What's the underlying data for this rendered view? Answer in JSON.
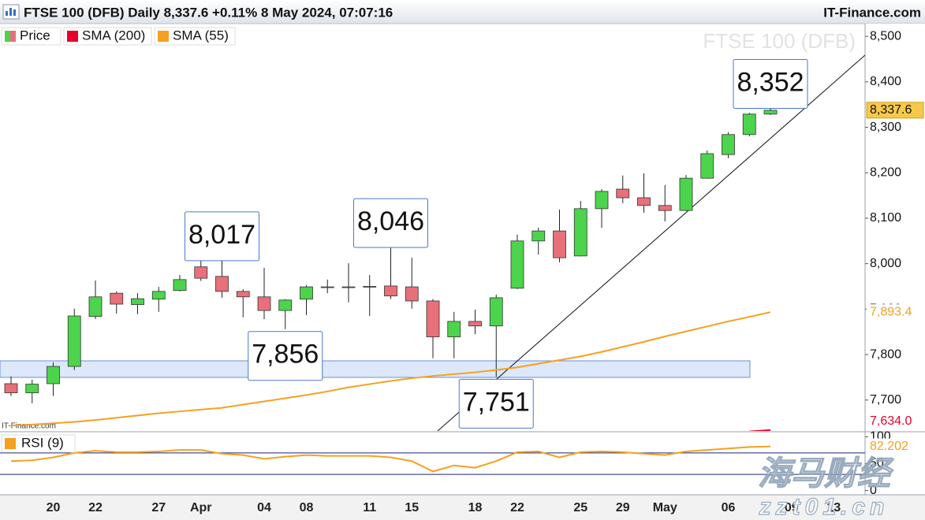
{
  "chart_data": [
    {
      "type": "candlestick",
      "title": "FTSE 100 (DFB) Daily 8,337.6 +0.11% 8 May 2024, 07:07:16",
      "source": "IT-Finance.com",
      "watermark": "FTSE 100 (DFB)",
      "credit": "IT-Finance.com",
      "overlay": [
        "海马财经",
        "zzt01.cn"
      ],
      "legend": "top-left",
      "grid": false,
      "categories": [
        null,
        null,
        "20",
        null,
        "22",
        null,
        null,
        "27",
        null,
        "Apr",
        null,
        null,
        "04",
        null,
        "08",
        null,
        null,
        "11",
        null,
        "15",
        null,
        null,
        "18",
        null,
        "22",
        null,
        null,
        "25",
        null,
        "29",
        null,
        "May",
        null,
        null,
        "06",
        null,
        null,
        "09",
        null,
        "13"
      ],
      "ylim": [
        7632,
        8528
      ],
      "yticks": [
        {
          "value": 7700,
          "label": "7,700"
        },
        {
          "value": 7800,
          "label": "7,800"
        },
        {
          "value": 7900,
          "label": "7,900"
        },
        {
          "value": 8000,
          "label": "8,000"
        },
        {
          "value": 8100,
          "label": "8,100"
        },
        {
          "value": 8200,
          "label": "8,200"
        },
        {
          "value": 8300,
          "label": "8,300"
        },
        {
          "value": 8400,
          "label": "8,400"
        },
        {
          "value": 8500,
          "label": "8,500"
        }
      ],
      "series": [
        {
          "name": "Price",
          "type": "candlestick",
          "up_color": "#4cd44c",
          "down_color": "#e8707a",
          "open": [
            7736,
            7716,
            7736,
            7774,
            7884,
            7935,
            7910,
            7922,
            7941,
            7993,
            7972,
            7939,
            7927,
            7897,
            7922,
            7948,
            7949,
            7949,
            7951,
            7949,
            7918,
            7839,
            7873,
            7863,
            7946,
            8050,
            8072,
            8017,
            8121,
            8164,
            8145,
            8128,
            8117,
            8188,
            8240,
            8284,
            8329,
            null,
            null,
            null
          ],
          "high": [
            7752,
            7745,
            7783,
            7901,
            7963,
            7939,
            7935,
            7949,
            7975,
            8008,
            8017,
            7944,
            7991,
            7922,
            7953,
            7965,
            8001,
            7975,
            8046,
            8013,
            7922,
            7894,
            7899,
            7932,
            8064,
            8079,
            8119,
            8138,
            8164,
            8194,
            8199,
            8173,
            8195,
            8249,
            8289,
            8332,
            8352,
            null,
            null,
            null
          ],
          "low": [
            7709,
            7693,
            7709,
            7766,
            7878,
            7890,
            7889,
            7894,
            7939,
            7962,
            7925,
            7882,
            7878,
            7856,
            7887,
            7935,
            7915,
            7885,
            7922,
            7901,
            7792,
            7792,
            7845,
            7751,
            7944,
            8020,
            8003,
            8016,
            8079,
            8133,
            8112,
            8093,
            8116,
            8187,
            8232,
            8280,
            8327,
            null,
            null,
            null
          ],
          "close": [
            7716,
            7735,
            7774,
            7885,
            7927,
            7911,
            7923,
            7939,
            7965,
            7968,
            7939,
            7927,
            7897,
            7920,
            7949,
            7949,
            7949,
            7950,
            7929,
            7918,
            7839,
            7873,
            7863,
            7925,
            8050,
            8072,
            8013,
            8121,
            8159,
            8145,
            8128,
            8117,
            8188,
            8242,
            8284,
            8329,
            8337.6,
            null,
            null,
            null
          ],
          "high_labels": [
            null,
            null,
            null,
            null,
            null,
            null,
            null,
            null,
            null,
            null,
            "8,017",
            null,
            null,
            null,
            null,
            null,
            null,
            null,
            "8,046",
            null,
            null,
            null,
            null,
            null,
            null,
            null,
            null,
            null,
            null,
            null,
            null,
            null,
            null,
            null,
            null,
            null,
            "8,352",
            null,
            null,
            null
          ],
          "low_labels": [
            null,
            null,
            null,
            null,
            null,
            null,
            null,
            null,
            null,
            null,
            null,
            null,
            null,
            "7,856",
            null,
            null,
            null,
            null,
            null,
            null,
            null,
            null,
            null,
            "7,751",
            null,
            null,
            null,
            null,
            null,
            null,
            null,
            null,
            null,
            null,
            null,
            null,
            null,
            null,
            null,
            null
          ],
          "close_labels": [
            null,
            null,
            null,
            null,
            null,
            null,
            null,
            null,
            null,
            null,
            null,
            null,
            null,
            null,
            null,
            null,
            null,
            null,
            null,
            null,
            null,
            null,
            null,
            null,
            null,
            null,
            null,
            null,
            null,
            null,
            null,
            null,
            null,
            null,
            null,
            null,
            "8,337.6",
            null,
            null,
            null
          ]
        },
        {
          "name": "SMA (200)",
          "type": "line",
          "color": "#e8002a",
          "values": [
            null,
            null,
            null,
            null,
            null,
            null,
            null,
            null,
            null,
            null,
            null,
            null,
            null,
            null,
            null,
            null,
            null,
            null,
            null,
            null,
            null,
            null,
            null,
            null,
            null,
            null,
            null,
            null,
            null,
            null,
            null,
            null,
            null,
            null,
            null,
            7631,
            7634.0,
            null,
            null,
            null
          ],
          "value_labels": [
            null,
            null,
            null,
            null,
            null,
            null,
            null,
            null,
            null,
            null,
            null,
            null,
            null,
            null,
            null,
            null,
            null,
            null,
            null,
            null,
            null,
            null,
            null,
            null,
            null,
            null,
            null,
            null,
            null,
            null,
            null,
            null,
            null,
            null,
            null,
            null,
            "7,634.0",
            null,
            null,
            null
          ]
        },
        {
          "name": "SMA (55)",
          "type": "line",
          "color": "#f5a020",
          "values": [
            7644,
            7646,
            7649,
            7652,
            7656,
            7661,
            7666,
            7671,
            7675,
            7679,
            7683,
            7690,
            7697,
            7704,
            7711,
            7719,
            7728,
            7735,
            7742,
            7748,
            7753,
            7757,
            7761,
            7766,
            7772,
            7780,
            7788,
            7796,
            7806,
            7817,
            7828,
            7840,
            7851,
            7862,
            7873,
            7883,
            7893.4,
            null,
            null,
            null
          ],
          "value_labels": [
            null,
            null,
            null,
            null,
            null,
            null,
            null,
            null,
            null,
            null,
            null,
            null,
            null,
            null,
            null,
            null,
            null,
            null,
            null,
            null,
            null,
            null,
            null,
            null,
            null,
            null,
            null,
            null,
            null,
            null,
            null,
            null,
            null,
            null,
            null,
            null,
            "7,893.4",
            null,
            null,
            null
          ]
        }
      ]
    },
    {
      "type": "line",
      "ylim": [
        -8,
        108
      ],
      "yticks": [
        0,
        50,
        100
      ],
      "levels": [
        70,
        30
      ],
      "level_color": "#1a237e",
      "series": [
        {
          "name": "RSI (9)",
          "color": "#f5a020",
          "values": [
            54.8,
            56.2,
            61.7,
            70,
            74.1,
            71.4,
            71.4,
            72.8,
            75.5,
            75.5,
            68.6,
            65.9,
            59,
            63.1,
            65.9,
            64.5,
            64.5,
            64.5,
            61.7,
            54.8,
            35.5,
            46.6,
            42.4,
            54.8,
            71.4,
            72.8,
            61.7,
            71.4,
            72.8,
            71.4,
            68.6,
            65.9,
            72.8,
            75.5,
            78.3,
            81,
            82.202,
            null,
            null,
            null
          ],
          "value_labels": [
            null,
            null,
            null,
            null,
            null,
            null,
            null,
            null,
            null,
            null,
            null,
            null,
            null,
            null,
            null,
            null,
            null,
            null,
            null,
            null,
            null,
            null,
            null,
            null,
            null,
            null,
            null,
            null,
            null,
            null,
            null,
            null,
            null,
            null,
            null,
            null,
            "82.202",
            null,
            null,
            null
          ]
        }
      ]
    }
  ]
}
